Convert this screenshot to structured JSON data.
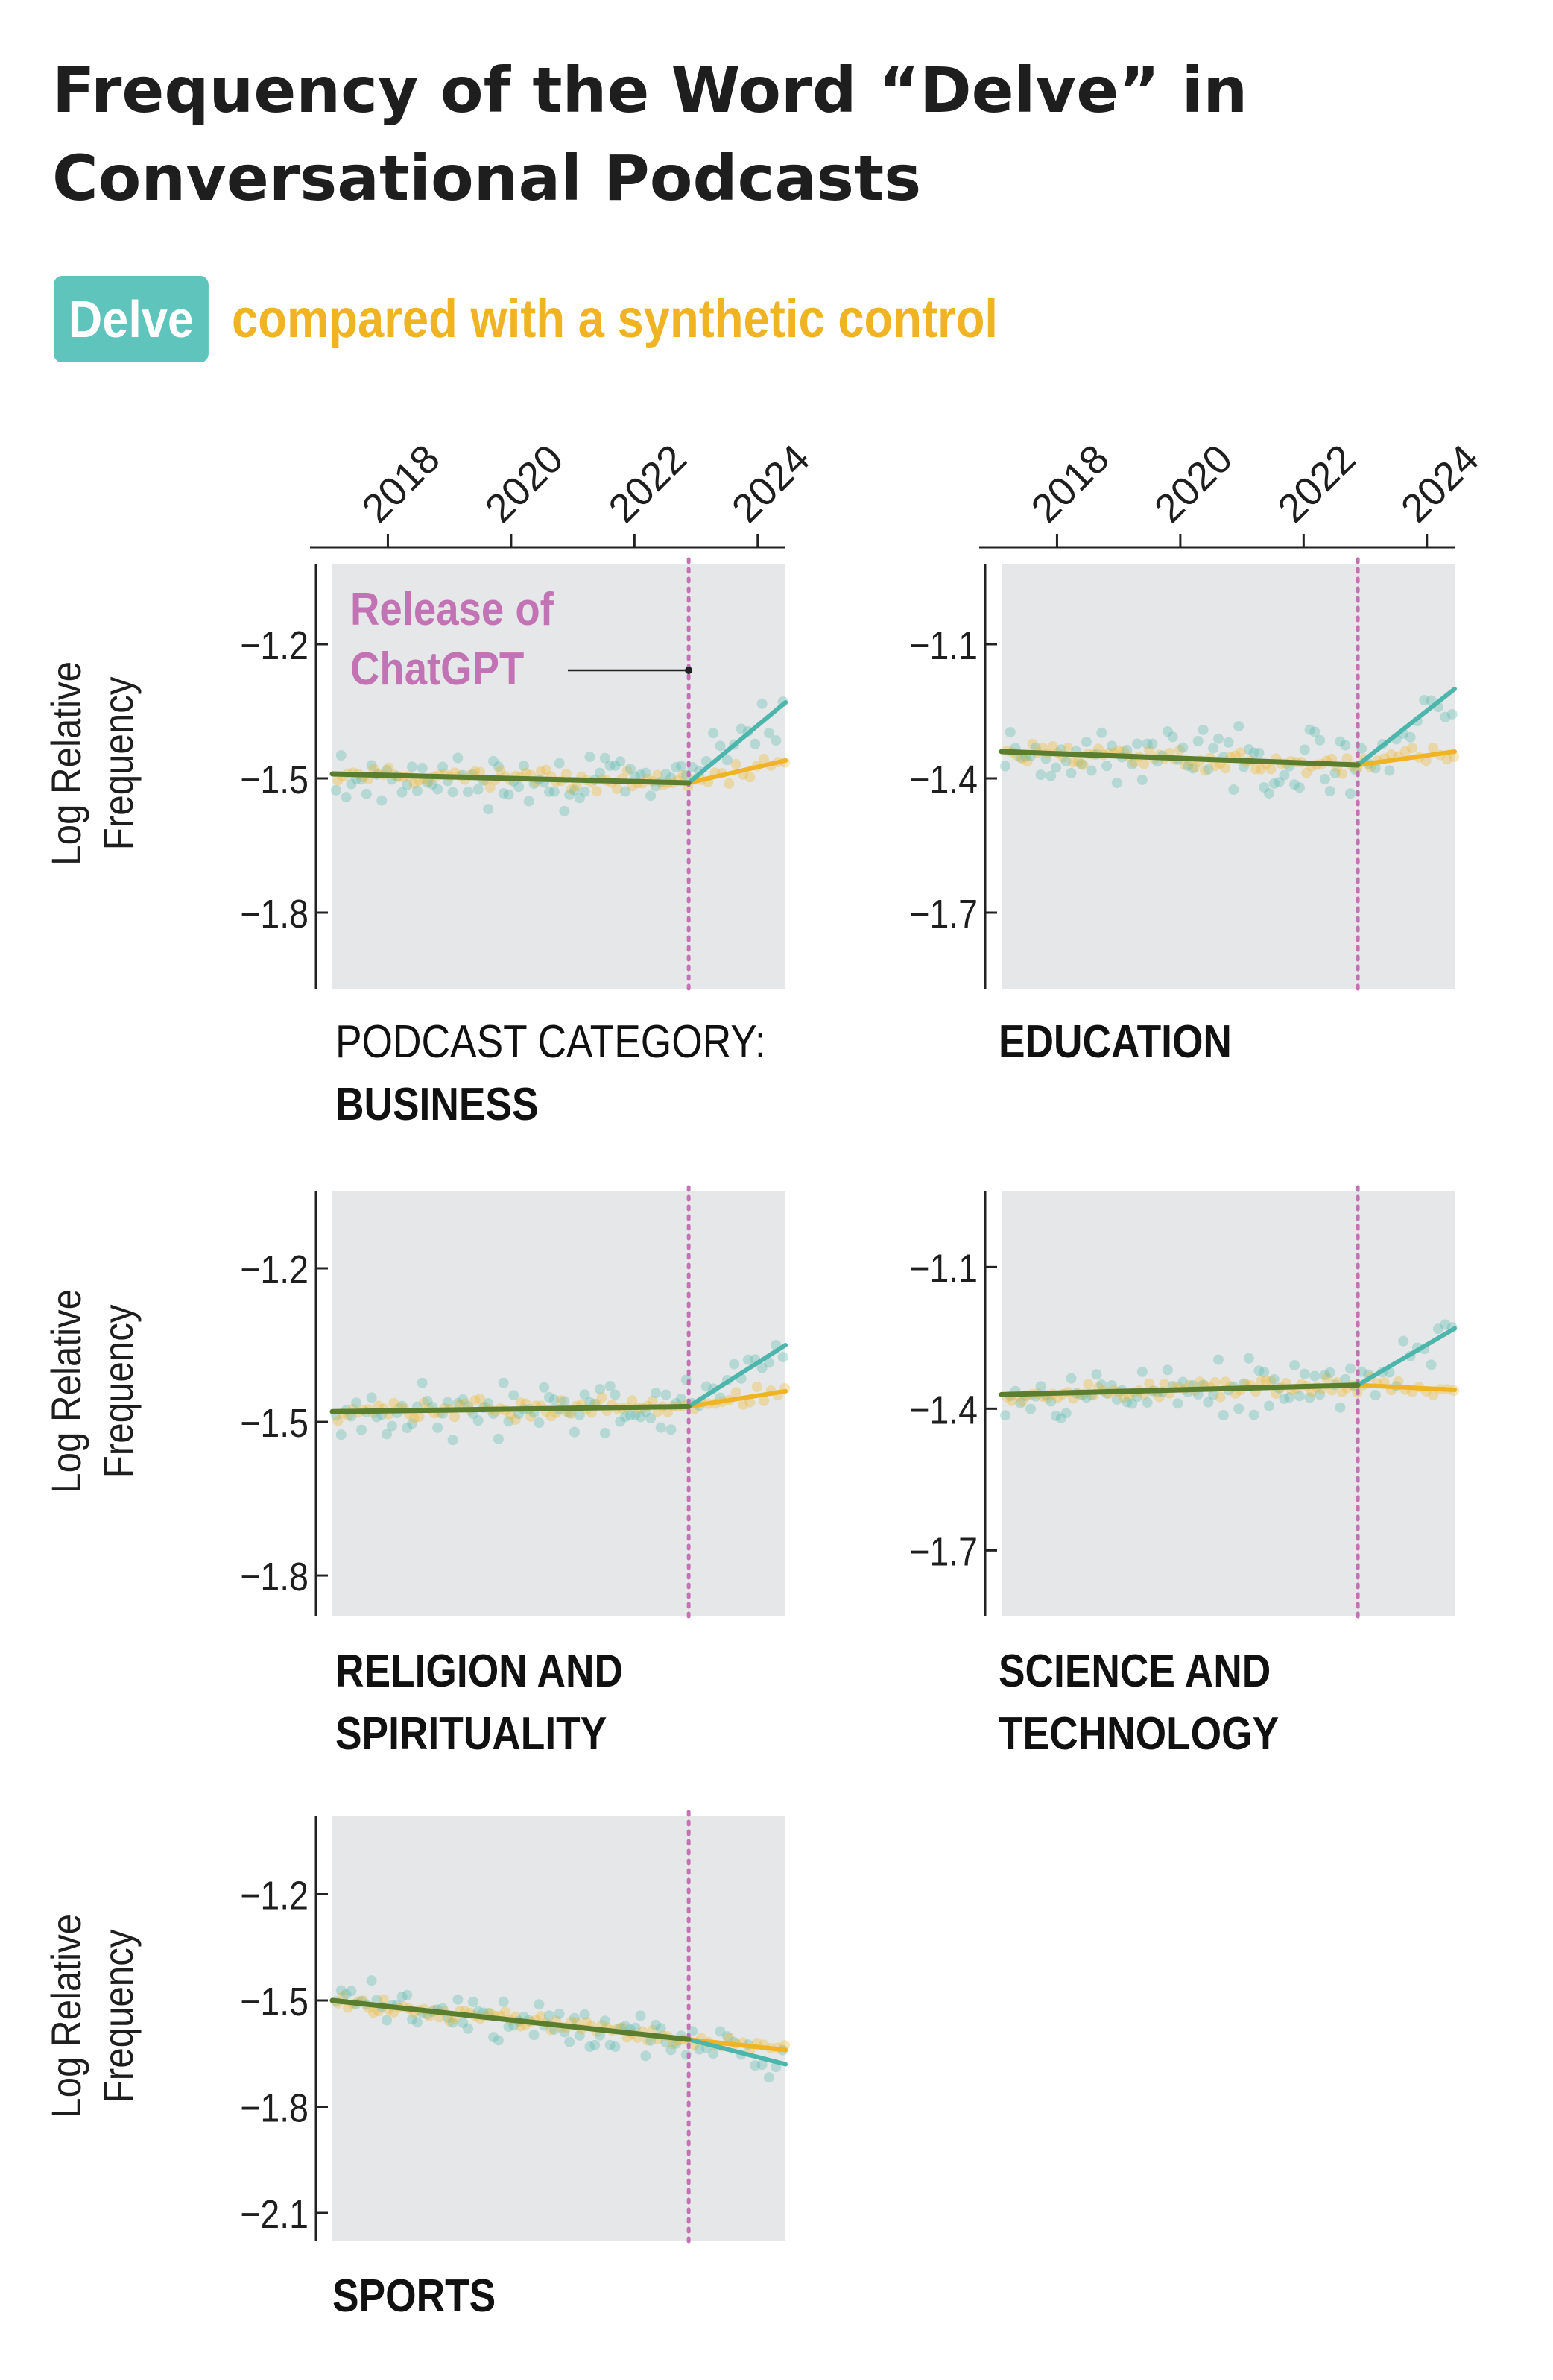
{
  "title": "Frequency of the Word “Delve” in Conversational Podcasts",
  "legend": {
    "delve_label": "Delve",
    "control_label": "compared with a synthetic control"
  },
  "colors": {
    "delve": "#4db6ac",
    "control": "#f0b323",
    "pre_fit": "#5a7e2e",
    "release_line": "#c273b4",
    "panel_bg": "#e6e7e8",
    "text": "#1e1e1e"
  },
  "annotation": {
    "release_line1": "Release of",
    "release_line2": "ChatGPT"
  },
  "category_prefix": "PODCAST CATEGORY:",
  "chart_data": [
    {
      "type": "scatter",
      "category": "BUSINESS",
      "title_lines": [
        "BUSINESS"
      ],
      "ylabel": [
        "Log Relative",
        "Frequency"
      ],
      "x_ticks": [
        "2018",
        "2020",
        "2022",
        "2024"
      ],
      "x_tick_values": [
        2018,
        2020,
        2022,
        2024
      ],
      "xlim": [
        2017.1,
        2024.45
      ],
      "y_ticks": [
        "−1.2",
        "−1.5",
        "−1.8"
      ],
      "y_tick_values": [
        -1.2,
        -1.5,
        -1.8
      ],
      "ylim": [
        -1.97,
        -1.02
      ],
      "release_x": 2022.88,
      "pre_trend": {
        "x": [
          2017.1,
          2022.88
        ],
        "y": [
          -1.49,
          -1.51
        ]
      },
      "delve_post": {
        "x": [
          2022.88,
          2024.45
        ],
        "y": [
          -1.51,
          -1.33
        ]
      },
      "control_post": {
        "x": [
          2022.88,
          2024.45
        ],
        "y": [
          -1.51,
          -1.46
        ]
      },
      "points": {
        "noise": 0.05,
        "seed": 11,
        "pre_count": 70,
        "post_count": 14
      }
    },
    {
      "type": "scatter",
      "category": "EDUCATION",
      "title_lines": [
        "EDUCATION"
      ],
      "ylabel": [],
      "x_ticks": [
        "2018",
        "2020",
        "2022",
        "2024"
      ],
      "x_tick_values": [
        2018,
        2020,
        2022,
        2024
      ],
      "xlim": [
        2017.1,
        2024.45
      ],
      "y_ticks": [
        "−1.1",
        "−1.4",
        "−1.7"
      ],
      "y_tick_values": [
        -1.1,
        -1.4,
        -1.7
      ],
      "ylim": [
        -1.87,
        -0.92
      ],
      "release_x": 2022.88,
      "pre_trend": {
        "x": [
          2017.1,
          2022.88
        ],
        "y": [
          -1.34,
          -1.37
        ]
      },
      "delve_post": {
        "x": [
          2022.88,
          2024.45
        ],
        "y": [
          -1.37,
          -1.2
        ]
      },
      "control_post": {
        "x": [
          2022.88,
          2024.45
        ],
        "y": [
          -1.37,
          -1.34
        ]
      },
      "points": {
        "noise": 0.055,
        "seed": 23,
        "pre_count": 70,
        "post_count": 14
      }
    },
    {
      "type": "scatter",
      "category": "RELIGION AND SPIRITUALITY",
      "title_lines": [
        "RELIGION AND",
        "SPIRITUALITY"
      ],
      "ylabel": [
        "Log Relative",
        "Frequency"
      ],
      "x_ticks": [],
      "x_tick_values": [],
      "xlim": [
        2017.1,
        2024.45
      ],
      "y_ticks": [
        "−1.2",
        "−1.5",
        "−1.8"
      ],
      "y_tick_values": [
        -1.2,
        -1.5,
        -1.8
      ],
      "ylim": [
        -1.88,
        -1.05
      ],
      "release_x": 2022.88,
      "pre_trend": {
        "x": [
          2017.1,
          2022.88
        ],
        "y": [
          -1.48,
          -1.47
        ]
      },
      "delve_post": {
        "x": [
          2022.88,
          2024.45
        ],
        "y": [
          -1.47,
          -1.35
        ]
      },
      "control_post": {
        "x": [
          2022.88,
          2024.45
        ],
        "y": [
          -1.47,
          -1.44
        ]
      },
      "points": {
        "noise": 0.045,
        "seed": 37,
        "pre_count": 70,
        "post_count": 14
      }
    },
    {
      "type": "scatter",
      "category": "SCIENCE AND TECHNOLOGY",
      "title_lines": [
        "SCIENCE AND",
        "TECHNOLOGY"
      ],
      "ylabel": [],
      "x_ticks": [],
      "x_tick_values": [],
      "xlim": [
        2017.1,
        2024.45
      ],
      "y_ticks": [
        "−1.1",
        "−1.4",
        "−1.7"
      ],
      "y_tick_values": [
        -1.1,
        -1.4,
        -1.7
      ],
      "ylim": [
        -1.84,
        -0.94
      ],
      "release_x": 2022.88,
      "pre_trend": {
        "x": [
          2017.1,
          2022.88
        ],
        "y": [
          -1.37,
          -1.35
        ]
      },
      "delve_post": {
        "x": [
          2022.88,
          2024.45
        ],
        "y": [
          -1.35,
          -1.23
        ]
      },
      "control_post": {
        "x": [
          2022.88,
          2024.45
        ],
        "y": [
          -1.35,
          -1.36
        ]
      },
      "points": {
        "noise": 0.045,
        "seed": 53,
        "pre_count": 70,
        "post_count": 14
      }
    },
    {
      "type": "scatter",
      "category": "SPORTS",
      "title_lines": [
        "SPORTS"
      ],
      "ylabel": [
        "Log Relative",
        "Frequency"
      ],
      "x_ticks": [],
      "x_tick_values": [],
      "xlim": [
        2017.1,
        2024.45
      ],
      "y_ticks": [
        "−1.2",
        "−1.5",
        "−1.8",
        "−2.1"
      ],
      "y_tick_values": [
        -1.2,
        -1.5,
        -1.8,
        -2.1
      ],
      "ylim": [
        -2.18,
        -0.98
      ],
      "release_x": 2022.88,
      "pre_trend": {
        "x": [
          2017.1,
          2022.88
        ],
        "y": [
          -1.5,
          -1.61
        ]
      },
      "delve_post": {
        "x": [
          2022.88,
          2024.45
        ],
        "y": [
          -1.61,
          -1.68
        ]
      },
      "control_post": {
        "x": [
          2022.88,
          2024.45
        ],
        "y": [
          -1.61,
          -1.64
        ]
      },
      "points": {
        "noise": 0.05,
        "seed": 71,
        "pre_count": 70,
        "post_count": 14
      }
    }
  ]
}
